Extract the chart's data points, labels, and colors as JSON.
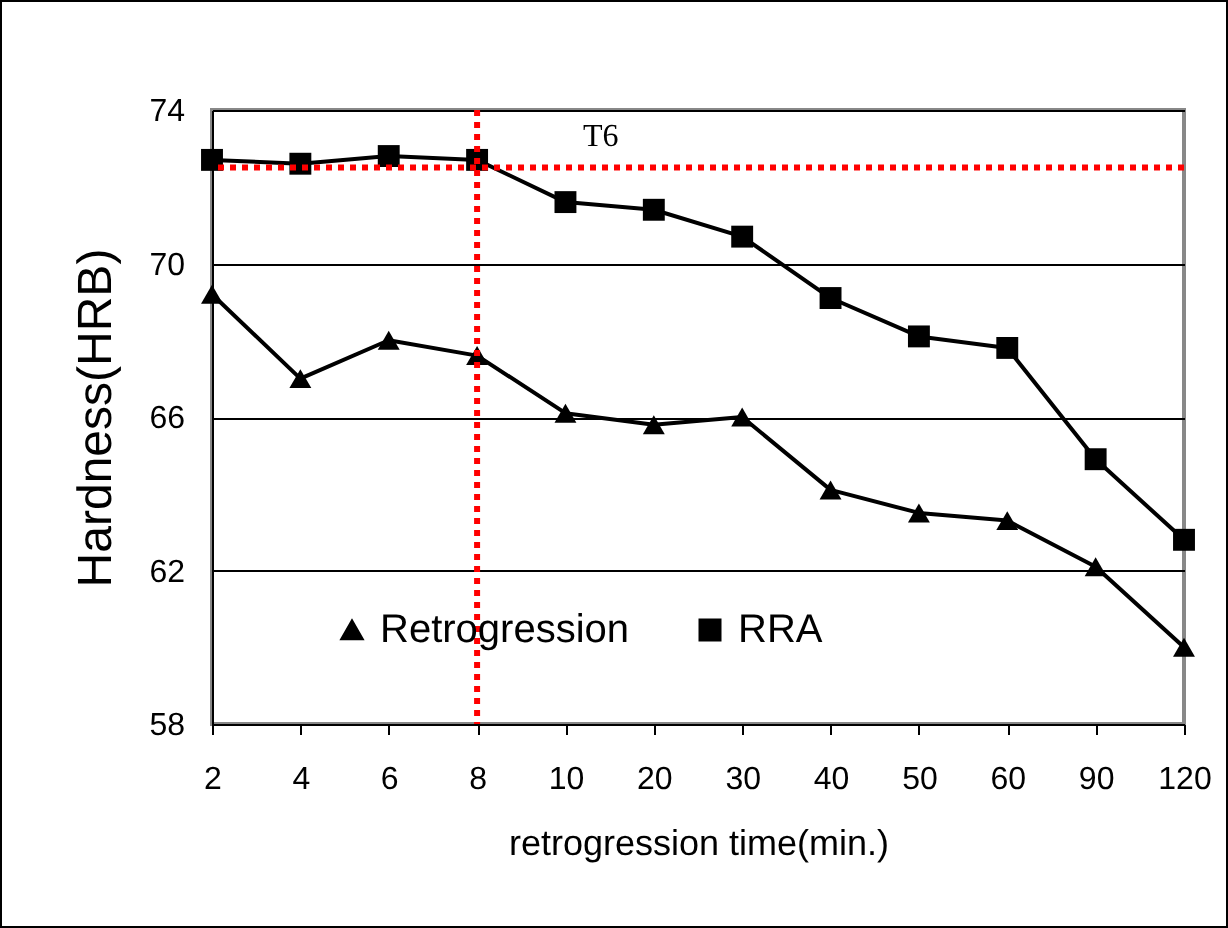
{
  "chart_data": {
    "type": "line",
    "xlabel": "retrogression time(min.)",
    "ylabel": "Hardness(HRB)",
    "categories": [
      "2",
      "4",
      "6",
      "8",
      "10",
      "20",
      "30",
      "40",
      "50",
      "60",
      "90",
      "120"
    ],
    "series": [
      {
        "name": "Retrogression",
        "color": "#000000",
        "marker": "triangle",
        "values": [
          69.2,
          67.0,
          68.0,
          67.6,
          66.1,
          65.8,
          66.0,
          64.1,
          63.5,
          63.3,
          62.1,
          60.0
        ]
      },
      {
        "name": "RRA",
        "color": "#000000",
        "marker": "square",
        "values": [
          72.7,
          72.6,
          72.8,
          72.7,
          71.6,
          71.4,
          70.7,
          69.1,
          68.1,
          67.8,
          64.9,
          62.8
        ]
      }
    ],
    "ylim": [
      58,
      74
    ],
    "yticks": [
      58,
      62,
      66,
      70,
      74
    ],
    "grid": "y",
    "legend": "bottom",
    "line_style": "solid",
    "ref_lines": [
      {
        "axis": "x",
        "value": "8",
        "color": "#ff0000",
        "line_style": "dotted"
      },
      {
        "axis": "y",
        "value": 72.5,
        "color": "#ff0000",
        "line_style": "dotted"
      }
    ],
    "annotations": [
      "T6"
    ]
  }
}
